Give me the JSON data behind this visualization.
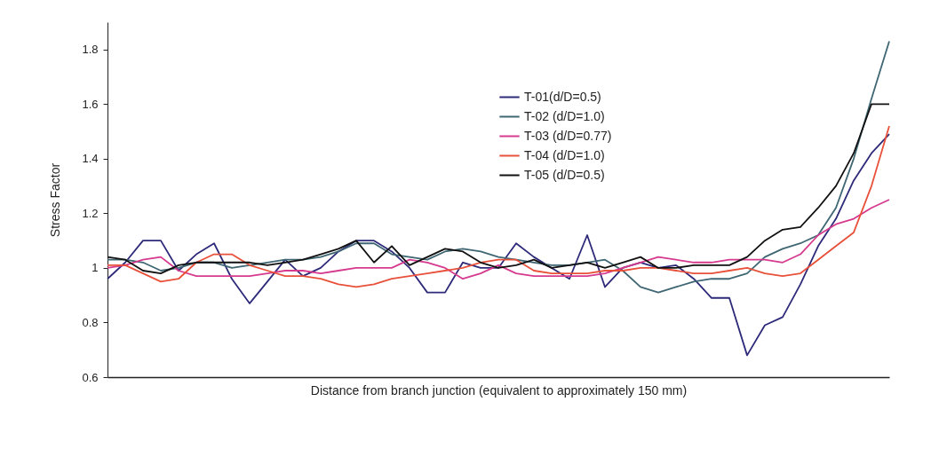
{
  "chart_data": {
    "type": "line",
    "xlabel": "Distance from branch junction (equivalent to approximately 150 mm)",
    "ylabel": "Stress Factor",
    "categories": [
      null,
      null,
      null,
      null,
      null,
      null,
      null,
      null,
      null,
      null,
      null,
      null,
      null,
      null,
      null,
      null,
      null,
      null,
      null,
      null,
      null,
      null,
      null,
      null,
      null,
      null,
      null,
      null,
      null,
      null,
      null,
      null,
      null,
      null,
      null,
      null,
      null,
      null,
      null,
      null,
      null,
      null,
      null,
      null,
      null
    ],
    "series": [
      {
        "name": "T-01(d/D=0.5)",
        "color": "#2e2a7a",
        "values": [
          0.96,
          1.02,
          1.1,
          1.1,
          0.99,
          1.05,
          1.09,
          0.96,
          0.87,
          0.95,
          1.03,
          0.97,
          1.0,
          1.06,
          1.1,
          1.1,
          1.06,
          1.0,
          0.91,
          0.91,
          1.02,
          1.0,
          1.0,
          1.09,
          1.04,
          1.0,
          0.96,
          1.12,
          0.93,
          1.0,
          1.02,
          1.0,
          1.01,
          0.96,
          0.89,
          0.89,
          0.68,
          0.79,
          0.82,
          0.94,
          1.08,
          1.18,
          1.32,
          1.42,
          1.49
        ]
      },
      {
        "name": "T-02 (d/D=1.0)",
        "color": "#3f6673",
        "values": [
          1.03,
          1.03,
          1.02,
          0.99,
          1.0,
          1.02,
          1.02,
          1.0,
          1.01,
          1.02,
          1.03,
          1.03,
          1.04,
          1.06,
          1.09,
          1.09,
          1.05,
          1.04,
          1.03,
          1.06,
          1.07,
          1.06,
          1.04,
          1.03,
          1.02,
          1.01,
          1.01,
          1.02,
          1.03,
          0.99,
          0.93,
          0.91,
          0.93,
          0.95,
          0.96,
          0.96,
          0.98,
          1.04,
          1.07,
          1.09,
          1.12,
          1.22,
          1.4,
          1.62,
          1.83
        ]
      },
      {
        "name": "T-03 (d/D=0.77)",
        "color": "#d63a8e",
        "values": [
          1.0,
          1.01,
          1.03,
          1.04,
          0.99,
          0.97,
          0.97,
          0.97,
          0.97,
          0.98,
          0.99,
          0.99,
          0.98,
          0.99,
          1.0,
          1.0,
          1.0,
          1.03,
          1.02,
          1.0,
          0.96,
          0.98,
          1.01,
          0.98,
          0.97,
          0.97,
          0.97,
          0.97,
          0.98,
          1.0,
          1.02,
          1.04,
          1.03,
          1.02,
          1.02,
          1.03,
          1.03,
          1.03,
          1.02,
          1.05,
          1.12,
          1.16,
          1.18,
          1.22,
          1.25
        ]
      },
      {
        "name": "T-04 (d/D=1.0)",
        "color": "#e8503a",
        "values": [
          1.01,
          1.01,
          0.98,
          0.95,
          0.96,
          1.02,
          1.05,
          1.05,
          1.01,
          0.99,
          0.97,
          0.97,
          0.96,
          0.94,
          0.93,
          0.94,
          0.96,
          0.97,
          0.98,
          0.99,
          1.0,
          1.02,
          1.03,
          1.03,
          0.99,
          0.98,
          0.98,
          0.98,
          0.99,
          0.99,
          1.0,
          1.0,
          0.99,
          0.98,
          0.98,
          0.99,
          1.0,
          0.98,
          0.97,
          0.98,
          1.03,
          1.08,
          1.13,
          1.3,
          1.52
        ]
      },
      {
        "name": "T-05 (d/D=0.5)",
        "color": "#111111",
        "values": [
          1.04,
          1.03,
          0.99,
          0.98,
          1.01,
          1.02,
          1.02,
          1.02,
          1.02,
          1.01,
          1.02,
          1.03,
          1.05,
          1.07,
          1.1,
          1.02,
          1.08,
          1.01,
          1.04,
          1.07,
          1.06,
          1.02,
          1.0,
          1.01,
          1.03,
          1.0,
          1.01,
          1.02,
          1.0,
          1.02,
          1.04,
          1.0,
          1.0,
          1.01,
          1.01,
          1.01,
          1.04,
          1.1,
          1.14,
          1.15,
          1.22,
          1.3,
          1.42,
          1.6,
          1.6
        ]
      }
    ],
    "ylim": [
      0.6,
      1.9
    ],
    "yticks": [
      0.6,
      0.8,
      1,
      1.2,
      1.4,
      1.6,
      1.8
    ],
    "tick_labels": "y",
    "legend": "top right",
    "grid": false,
    "marker": "none",
    "line_style": "solid"
  }
}
